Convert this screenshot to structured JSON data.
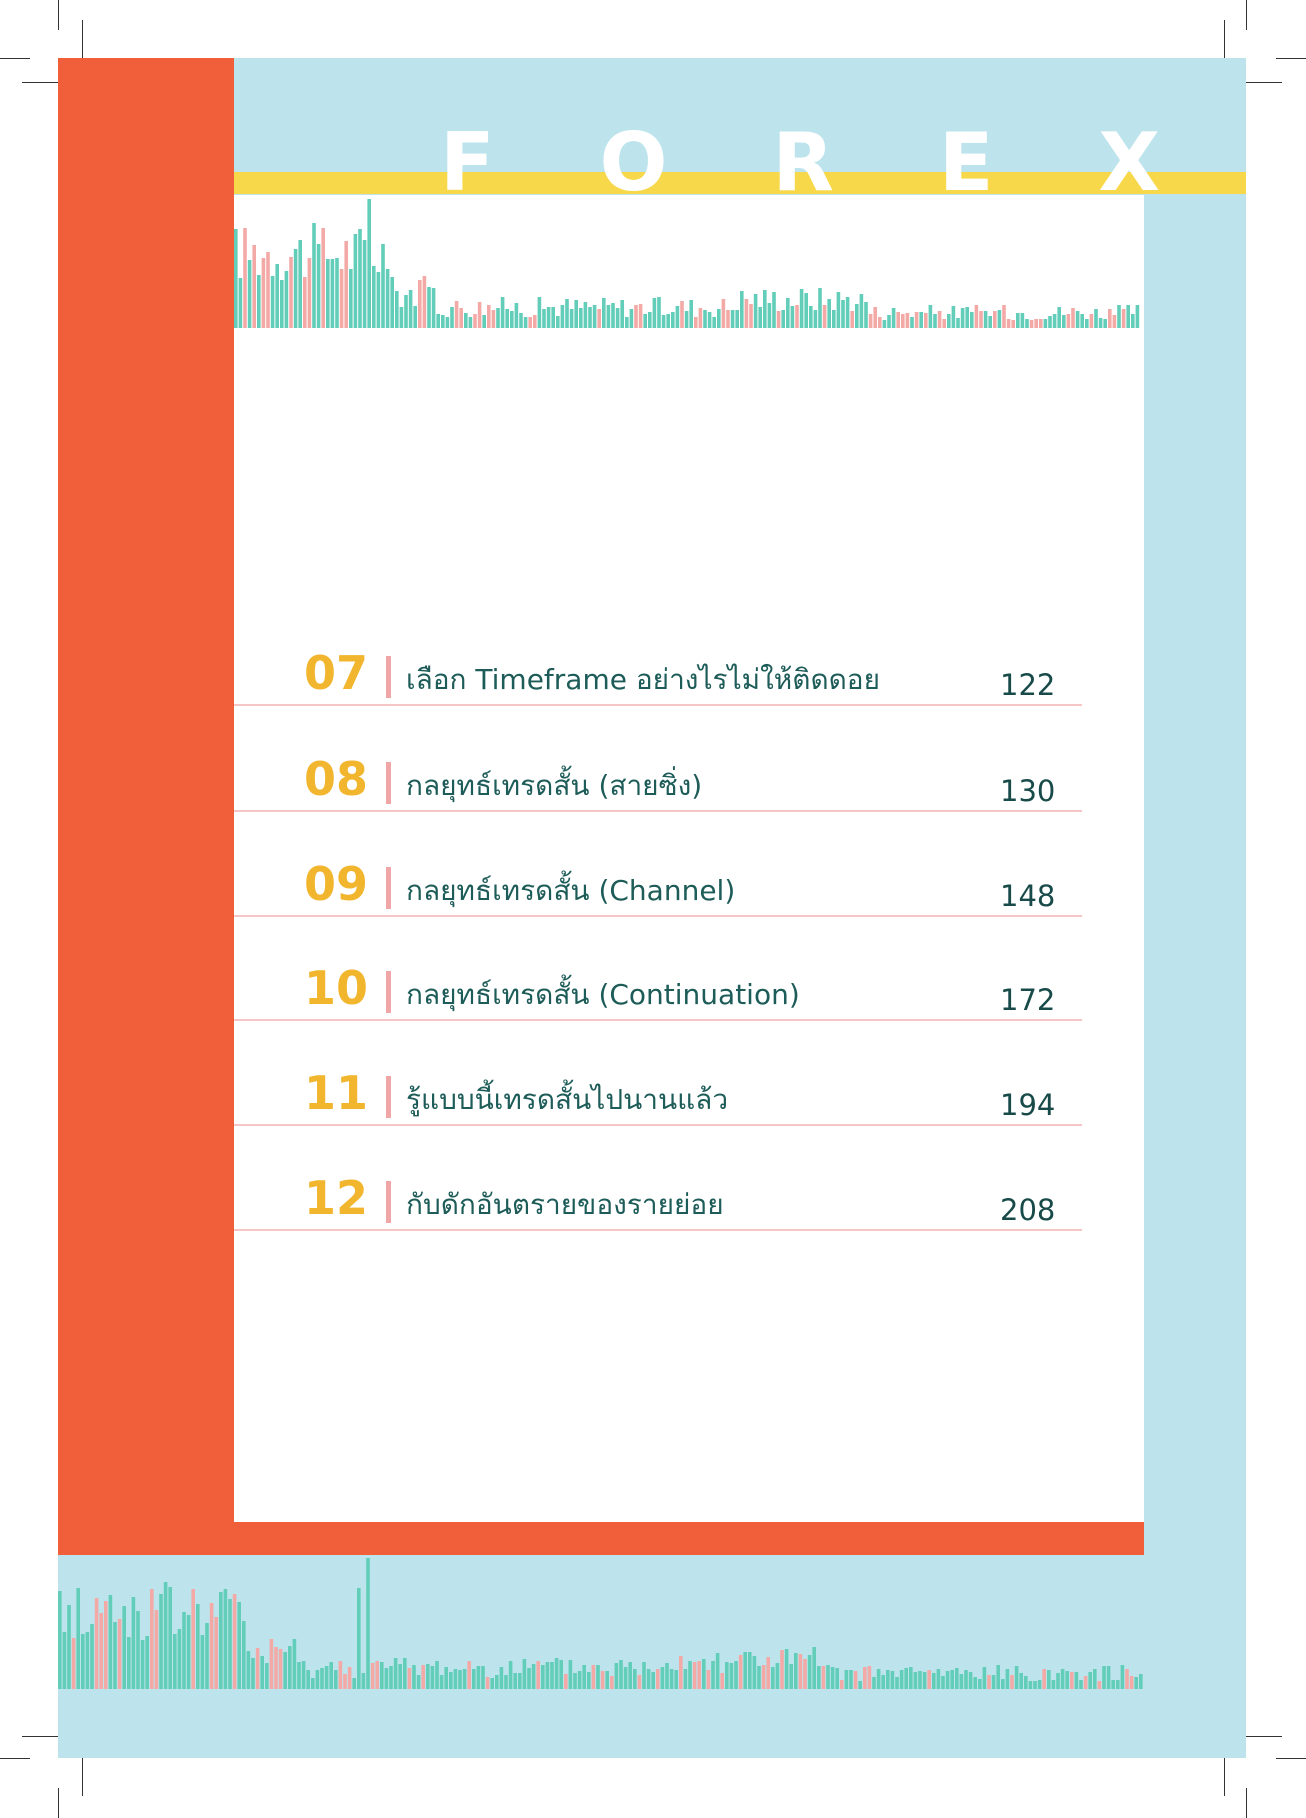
{
  "header": {
    "letters": [
      "F",
      "O",
      "R",
      "E",
      "X"
    ]
  },
  "colors": {
    "orange": "#f05f39",
    "light_blue": "#bde4ec",
    "yellow": "#f7d84a",
    "bar_teal": "#62cdb8",
    "bar_pink": "#f3a9a6",
    "number_gold": "#f1b62e",
    "text_teal": "#1d5c58"
  },
  "toc": {
    "items": [
      {
        "number": "07",
        "title": "เลือก Timeframe อย่างไรไม่ให้ติดดอย",
        "page": "122"
      },
      {
        "number": "08",
        "title": "กลยุทธ์เทรดสั้น (สายซิ่ง)",
        "page": "130"
      },
      {
        "number": "09",
        "title": "กลยุทธ์เทรดสั้น (Channel)",
        "page": "148"
      },
      {
        "number": "10",
        "title": "กลยุทธ์เทรดสั้น (Continuation)",
        "page": "172"
      },
      {
        "number": "11",
        "title": "รู้แบบนี้เทรดสั้นไปนานแล้ว",
        "page": "194"
      },
      {
        "number": "12",
        "title": "กับดักอันตรายของรายย่อย",
        "page": "208"
      }
    ]
  }
}
